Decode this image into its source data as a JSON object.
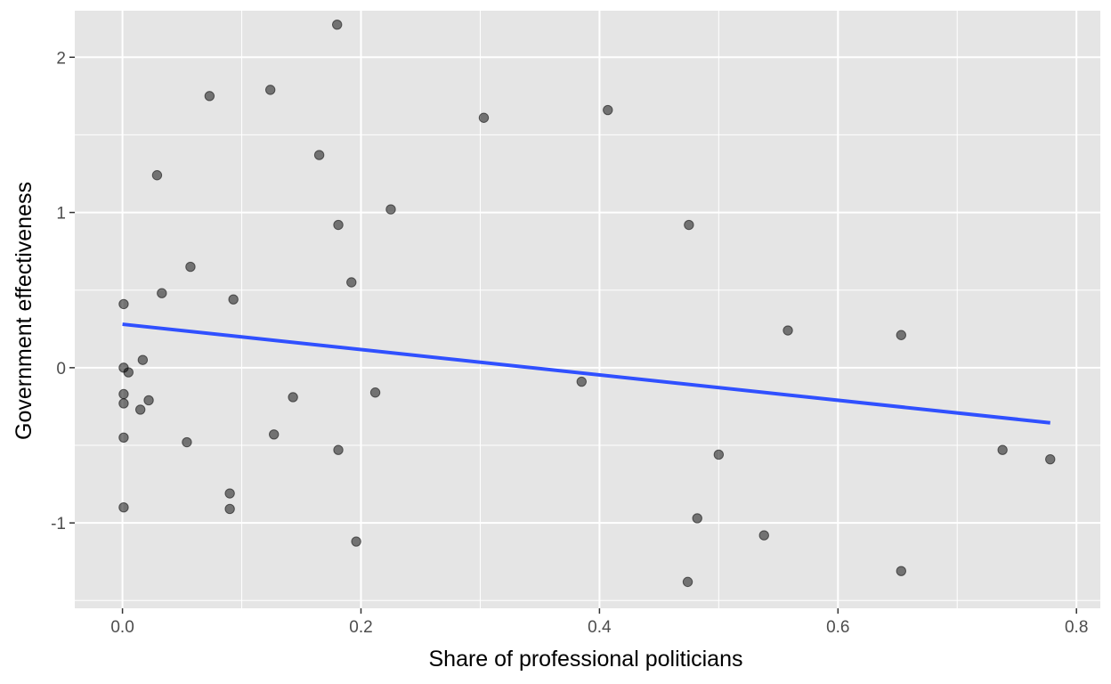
{
  "chart_data": {
    "type": "scatter",
    "title": "",
    "xlabel": "Share of professional politicians",
    "ylabel": "Government effectiveness",
    "xlim": [
      -0.04,
      0.82
    ],
    "ylim": [
      -1.55,
      2.3
    ],
    "x_ticks": [
      0.0,
      0.2,
      0.4,
      0.6,
      0.8
    ],
    "x_tick_labels": [
      "0.0",
      "0.2",
      "0.4",
      "0.6",
      "0.8"
    ],
    "y_ticks": [
      -1,
      0,
      1,
      2
    ],
    "y_tick_labels": [
      "-1",
      "0",
      "1",
      "2"
    ],
    "x_minor": [
      0.1,
      0.3,
      0.5,
      0.7
    ],
    "y_minor": [
      -1.5,
      -0.5,
      0.5,
      1.5
    ],
    "grid": true,
    "panel_background": "#e5e5e5",
    "grid_color": "#ffffff",
    "point_color": "#000000",
    "point_opacity": 0.5,
    "line_color": "#3050ff",
    "points": [
      {
        "x": 0.18,
        "y": 2.21
      },
      {
        "x": 0.073,
        "y": 1.75
      },
      {
        "x": 0.124,
        "y": 1.79
      },
      {
        "x": 0.303,
        "y": 1.61
      },
      {
        "x": 0.407,
        "y": 1.66
      },
      {
        "x": 0.165,
        "y": 1.37
      },
      {
        "x": 0.029,
        "y": 1.24
      },
      {
        "x": 0.225,
        "y": 1.02
      },
      {
        "x": 0.181,
        "y": 0.92
      },
      {
        "x": 0.475,
        "y": 0.92
      },
      {
        "x": 0.057,
        "y": 0.65
      },
      {
        "x": 0.192,
        "y": 0.55
      },
      {
        "x": 0.033,
        "y": 0.48
      },
      {
        "x": 0.093,
        "y": 0.44
      },
      {
        "x": 0.001,
        "y": 0.41
      },
      {
        "x": 0.558,
        "y": 0.24
      },
      {
        "x": 0.653,
        "y": 0.21
      },
      {
        "x": 0.017,
        "y": 0.05
      },
      {
        "x": 0.001,
        "y": 0.0
      },
      {
        "x": 0.005,
        "y": -0.03
      },
      {
        "x": 0.385,
        "y": -0.09
      },
      {
        "x": 0.212,
        "y": -0.16
      },
      {
        "x": 0.001,
        "y": -0.17
      },
      {
        "x": 0.143,
        "y": -0.19
      },
      {
        "x": 0.022,
        "y": -0.21
      },
      {
        "x": 0.001,
        "y": -0.23
      },
      {
        "x": 0.015,
        "y": -0.27
      },
      {
        "x": 0.127,
        "y": -0.43
      },
      {
        "x": 0.001,
        "y": -0.45
      },
      {
        "x": 0.054,
        "y": -0.48
      },
      {
        "x": 0.181,
        "y": -0.53
      },
      {
        "x": 0.5,
        "y": -0.56
      },
      {
        "x": 0.738,
        "y": -0.53
      },
      {
        "x": 0.778,
        "y": -0.59
      },
      {
        "x": 0.09,
        "y": -0.81
      },
      {
        "x": 0.001,
        "y": -0.9
      },
      {
        "x": 0.09,
        "y": -0.91
      },
      {
        "x": 0.482,
        "y": -0.97
      },
      {
        "x": 0.538,
        "y": -1.08
      },
      {
        "x": 0.196,
        "y": -1.12
      },
      {
        "x": 0.653,
        "y": -1.31
      },
      {
        "x": 0.474,
        "y": -1.38
      }
    ],
    "fit_line": {
      "x": [
        0.0,
        0.778
      ],
      "y": [
        0.28,
        -0.355
      ]
    }
  }
}
